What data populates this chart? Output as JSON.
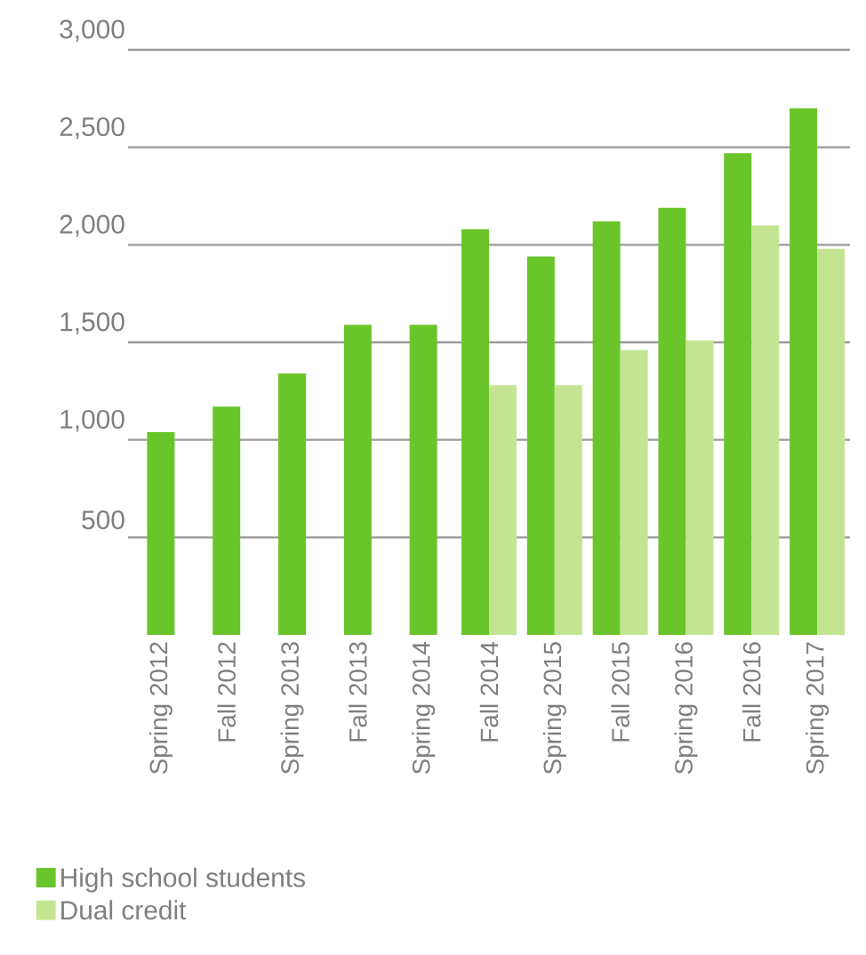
{
  "chart_data": {
    "type": "bar",
    "categories": [
      "Spring 2012",
      "Fall 2012",
      "Spring 2013",
      "Fall 2013",
      "Spring 2014",
      "Fall 2014",
      "Spring 2015",
      "Fall 2015",
      "Spring 2016",
      "Fall 2016",
      "Spring 2017"
    ],
    "series": [
      {
        "name": "High school students",
        "color": "#6ac52b",
        "values": [
          1040,
          1170,
          1340,
          1590,
          1590,
          2080,
          1940,
          2120,
          2190,
          2470,
          2700
        ]
      },
      {
        "name": "Dual credit",
        "color": "#c3e591",
        "values": [
          null,
          null,
          null,
          null,
          null,
          1280,
          1280,
          1460,
          1510,
          2100,
          1980
        ]
      }
    ],
    "ylim": [
      0,
      3000
    ],
    "yticks": [
      500,
      {
        "value": 1000,
        "label": "1,000"
      },
      {
        "value": 1500,
        "label": "1,500"
      },
      {
        "value": 2000,
        "label": "2,000"
      },
      {
        "value": 2500,
        "label": "2,500"
      },
      {
        "value": 3000,
        "label": "3,000"
      }
    ],
    "grid": "y",
    "legend": "bottom"
  }
}
